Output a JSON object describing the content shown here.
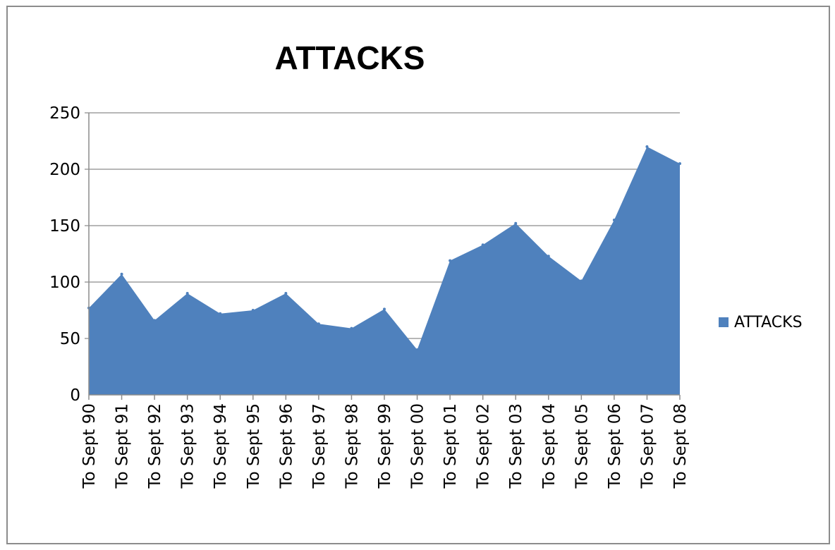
{
  "chart_data": {
    "type": "area",
    "title": "ATTACKS",
    "xlabel": "",
    "ylabel": "",
    "categories": [
      "To Sept 90",
      "To Sept 91",
      "To Sept 92",
      "To Sept 93",
      "To Sept 94",
      "To Sept 95",
      "To Sept 96",
      "To Sept 97",
      "To Sept 98",
      "To Sept 99",
      "To Sept 00",
      "To Sept 01",
      "To Sept 02",
      "To Sept 03",
      "To Sept 04",
      "To Sept 05",
      "To Sept 06",
      "To Sept 07",
      "To Sept 08"
    ],
    "series": [
      {
        "name": "ATTACKS",
        "values": [
          77,
          107,
          66,
          90,
          72,
          75,
          90,
          63,
          59,
          76,
          40,
          119,
          133,
          152,
          123,
          101,
          155,
          220,
          205
        ]
      }
    ],
    "ylim": [
      0,
      250
    ],
    "yticks": [
      "0",
      "50",
      "100",
      "150",
      "200",
      "250"
    ],
    "grid": true,
    "legend": "right",
    "colors": {
      "series": "#4f81bd",
      "grid": "#8c8c8c",
      "axis": "#8c8c8c"
    }
  }
}
